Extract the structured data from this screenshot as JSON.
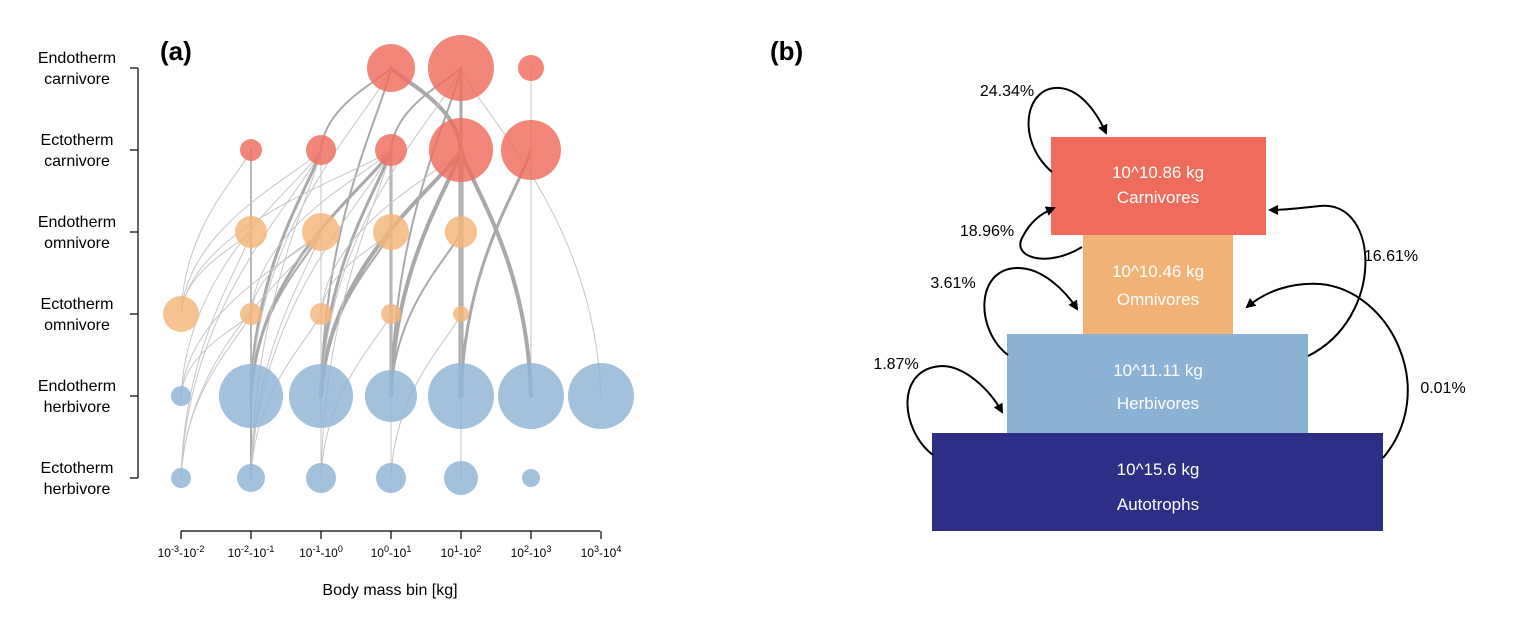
{
  "panel_a": {
    "label": "(a)",
    "xlabel": "Body mass bin [kg]",
    "groups": [
      {
        "line1": "Endotherm",
        "line2": "carnivore",
        "color": "#ef6c5c"
      },
      {
        "line1": "Ectotherm",
        "line2": "carnivore",
        "color": "#ef6c5c"
      },
      {
        "line1": "Endotherm",
        "line2": "omnivore",
        "color": "#f4b479"
      },
      {
        "line1": "Ectotherm",
        "line2": "omnivore",
        "color": "#f4b479"
      },
      {
        "line1": "Endotherm",
        "line2": "herbivore",
        "color": "#8db3d6"
      },
      {
        "line1": "Ectotherm",
        "line2": "herbivore",
        "color": "#8db3d6"
      }
    ],
    "bins": [
      {
        "base1": "10",
        "exp1": "-3",
        "base2": "10",
        "exp2": "-2"
      },
      {
        "base1": "10",
        "exp1": "-2",
        "base2": "10",
        "exp2": "-1"
      },
      {
        "base1": "10",
        "exp1": "-1",
        "base2": "10",
        "exp2": "0"
      },
      {
        "base1": "10",
        "exp1": "0",
        "base2": "10",
        "exp2": "1"
      },
      {
        "base1": "10",
        "exp1": "1",
        "base2": "10",
        "exp2": "2"
      },
      {
        "base1": "10",
        "exp1": "2",
        "base2": "10",
        "exp2": "3"
      },
      {
        "base1": "10",
        "exp1": "3",
        "base2": "10",
        "exp2": "4"
      }
    ],
    "nodes": [
      {
        "group": 0,
        "bin": 3,
        "size": 24
      },
      {
        "group": 0,
        "bin": 4,
        "size": 33
      },
      {
        "group": 0,
        "bin": 5,
        "size": 13
      },
      {
        "group": 1,
        "bin": 1,
        "size": 11
      },
      {
        "group": 1,
        "bin": 2,
        "size": 15
      },
      {
        "group": 1,
        "bin": 3,
        "size": 16
      },
      {
        "group": 1,
        "bin": 4,
        "size": 32
      },
      {
        "group": 1,
        "bin": 5,
        "size": 30
      },
      {
        "group": 2,
        "bin": 1,
        "size": 16
      },
      {
        "group": 2,
        "bin": 2,
        "size": 19
      },
      {
        "group": 2,
        "bin": 3,
        "size": 18
      },
      {
        "group": 2,
        "bin": 4,
        "size": 16
      },
      {
        "group": 3,
        "bin": 0,
        "size": 18
      },
      {
        "group": 3,
        "bin": 1,
        "size": 11
      },
      {
        "group": 3,
        "bin": 2,
        "size": 11
      },
      {
        "group": 3,
        "bin": 3,
        "size": 10
      },
      {
        "group": 3,
        "bin": 4,
        "size": 8
      },
      {
        "group": 4,
        "bin": 0,
        "size": 10
      },
      {
        "group": 4,
        "bin": 1,
        "size": 32
      },
      {
        "group": 4,
        "bin": 2,
        "size": 32
      },
      {
        "group": 4,
        "bin": 3,
        "size": 26
      },
      {
        "group": 4,
        "bin": 4,
        "size": 33
      },
      {
        "group": 4,
        "bin": 5,
        "size": 33
      },
      {
        "group": 4,
        "bin": 6,
        "size": 33
      },
      {
        "group": 5,
        "bin": 0,
        "size": 10
      },
      {
        "group": 5,
        "bin": 1,
        "size": 14
      },
      {
        "group": 5,
        "bin": 2,
        "size": 15
      },
      {
        "group": 5,
        "bin": 3,
        "size": 15
      },
      {
        "group": 5,
        "bin": 4,
        "size": 17
      },
      {
        "group": 5,
        "bin": 5,
        "size": 9
      }
    ],
    "links": [
      {
        "from": [
          4,
          4
        ],
        "to": [
          1,
          4
        ],
        "w": 5
      },
      {
        "from": [
          4,
          3
        ],
        "to": [
          1,
          4
        ],
        "w": 4
      },
      {
        "from": [
          4,
          2
        ],
        "to": [
          1,
          4
        ],
        "w": 4
      },
      {
        "from": [
          4,
          5
        ],
        "to": [
          1,
          4
        ],
        "w": 4
      },
      {
        "from": [
          4,
          4
        ],
        "to": [
          0,
          4
        ],
        "w": 3
      },
      {
        "from": [
          4,
          2
        ],
        "to": [
          1,
          3
        ],
        "w": 3
      },
      {
        "from": [
          4,
          1
        ],
        "to": [
          1,
          2
        ],
        "w": 3
      },
      {
        "from": [
          4,
          1
        ],
        "to": [
          1,
          3
        ],
        "w": 3
      },
      {
        "from": [
          1,
          4
        ],
        "to": [
          0,
          3
        ],
        "w": 4
      },
      {
        "from": [
          4,
          4
        ],
        "to": [
          1,
          5
        ],
        "w": 3
      },
      {
        "from": [
          4,
          3
        ],
        "to": [
          1,
          3
        ],
        "w": 3
      },
      {
        "from": [
          4,
          1
        ],
        "to": [
          2,
          2
        ],
        "w": 2
      },
      {
        "from": [
          4,
          2
        ],
        "to": [
          2,
          3
        ],
        "w": 2
      },
      {
        "from": [
          4,
          3
        ],
        "to": [
          2,
          4
        ],
        "w": 2
      },
      {
        "from": [
          4,
          2
        ],
        "to": [
          0,
          3
        ],
        "w": 2
      },
      {
        "from": [
          1,
          3
        ],
        "to": [
          0,
          4
        ],
        "w": 2
      },
      {
        "from": [
          1,
          2
        ],
        "to": [
          0,
          3
        ],
        "w": 2
      },
      {
        "from": [
          4,
          3
        ],
        "to": [
          0,
          4
        ],
        "w": 2
      },
      {
        "from": [
          3,
          0
        ],
        "to": [
          1,
          1
        ],
        "w": 1
      },
      {
        "from": [
          5,
          1
        ],
        "to": [
          1,
          1
        ],
        "w": 2
      },
      {
        "from": [
          5,
          0
        ],
        "to": [
          2,
          1
        ],
        "w": 1
      },
      {
        "from": [
          4,
          1
        ],
        "to": [
          1,
          1
        ],
        "w": 1
      },
      {
        "from": [
          5,
          1
        ],
        "to": [
          1,
          2
        ],
        "w": 1
      },
      {
        "from": [
          3,
          0
        ],
        "to": [
          1,
          2
        ],
        "w": 1
      },
      {
        "from": [
          5,
          2
        ],
        "to": [
          1,
          2
        ],
        "w": 1
      },
      {
        "from": [
          5,
          2
        ],
        "to": [
          1,
          3
        ],
        "w": 1
      },
      {
        "from": [
          5,
          3
        ],
        "to": [
          1,
          3
        ],
        "w": 1
      },
      {
        "from": [
          5,
          4
        ],
        "to": [
          1,
          4
        ],
        "w": 1
      },
      {
        "from": [
          5,
          0
        ],
        "to": [
          3,
          1
        ],
        "w": 1
      },
      {
        "from": [
          4,
          0
        ],
        "to": [
          3,
          1
        ],
        "w": 1
      },
      {
        "from": [
          5,
          1
        ],
        "to": [
          2,
          2
        ],
        "w": 1
      },
      {
        "from": [
          3,
          1
        ],
        "to": [
          2,
          2
        ],
        "w": 1
      },
      {
        "from": [
          3,
          2
        ],
        "to": [
          2,
          3
        ],
        "w": 1
      },
      {
        "from": [
          5,
          0
        ],
        "to": [
          2,
          2
        ],
        "w": 1
      },
      {
        "from": [
          5,
          1
        ],
        "to": [
          3,
          2
        ],
        "w": 1
      },
      {
        "from": [
          5,
          2
        ],
        "to": [
          3,
          3
        ],
        "w": 1
      },
      {
        "from": [
          5,
          3
        ],
        "to": [
          3,
          4
        ],
        "w": 1
      },
      {
        "from": [
          5,
          4
        ],
        "to": [
          2,
          4
        ],
        "w": 1
      },
      {
        "from": [
          4,
          0
        ],
        "to": [
          2,
          2
        ],
        "w": 1
      },
      {
        "from": [
          3,
          0
        ],
        "to": [
          2,
          1
        ],
        "w": 1
      },
      {
        "from": [
          4,
          1
        ],
        "to": [
          0,
          3
        ],
        "w": 1
      },
      {
        "from": [
          4,
          5
        ],
        "to": [
          0,
          5
        ],
        "w": 1
      },
      {
        "from": [
          4,
          6
        ],
        "to": [
          0,
          4
        ],
        "w": 1
      },
      {
        "from": [
          4,
          2
        ],
        "to": [
          0,
          4
        ],
        "w": 1
      },
      {
        "from": [
          5,
          1
        ],
        "to": [
          1,
          3
        ],
        "w": 1
      },
      {
        "from": [
          4,
          4
        ],
        "to": [
          2,
          4
        ],
        "w": 1
      },
      {
        "from": [
          1,
          5
        ],
        "to": [
          0,
          5
        ],
        "w": 1
      },
      {
        "from": [
          4,
          5
        ],
        "to": [
          1,
          5
        ],
        "w": 1
      },
      {
        "from": [
          5,
          0
        ],
        "to": [
          1,
          2
        ],
        "w": 1
      },
      {
        "from": [
          3,
          0
        ],
        "to": [
          1,
          3
        ],
        "w": 1
      },
      {
        "from": [
          4,
          0
        ],
        "to": [
          1,
          2
        ],
        "w": 1
      },
      {
        "from": [
          3,
          1
        ],
        "to": [
          1,
          3
        ],
        "w": 1
      },
      {
        "from": [
          3,
          2
        ],
        "to": [
          1,
          4
        ],
        "w": 1
      }
    ]
  },
  "panel_b": {
    "label": "(b)",
    "blocks": [
      {
        "mass": "10^10.86 kg",
        "name": "Carnivores",
        "color": "#ef6c5c"
      },
      {
        "mass": "10^10.46 kg",
        "name": "Omnivores",
        "color": "#f2b275"
      },
      {
        "mass": "10^11.11 kg",
        "name": "Herbivores",
        "color": "#8bb1d4"
      },
      {
        "mass": "10^15.6 kg",
        "name": "Autotrophs",
        "color": "#2d2e86"
      }
    ],
    "flows": [
      "24.34%",
      "18.96%",
      "16.61%",
      "3.61%",
      "1.87%",
      "0.01%"
    ]
  }
}
